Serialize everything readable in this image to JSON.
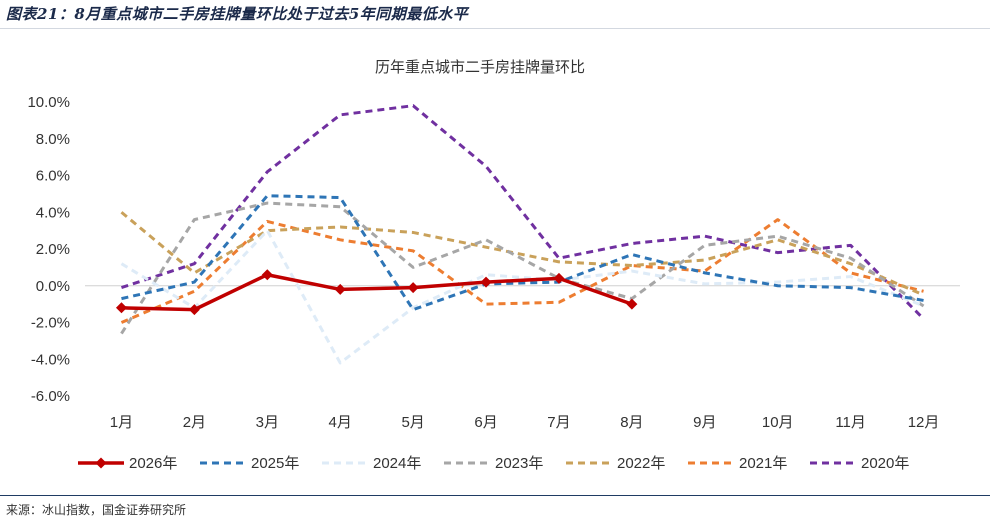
{
  "figure_title": "图表21：8月重点城市二手房挂牌量环比处于过去5年同期最低水平",
  "source_note": "来源：冰山指数，国金证券研究所",
  "chart_data": {
    "type": "line",
    "title": "历年重点城市二手房挂牌量环比",
    "categories": [
      "1月",
      "2月",
      "3月",
      "4月",
      "5月",
      "6月",
      "7月",
      "8月",
      "9月",
      "10月",
      "11月",
      "12月"
    ],
    "ylim": [
      -6,
      10
    ],
    "yticks": [
      -6,
      -4,
      -2,
      0,
      2,
      4,
      6,
      8,
      10
    ],
    "ytick_labels": [
      "-6.0%",
      "-4.0%",
      "-2.0%",
      "0.0%",
      "2.0%",
      "4.0%",
      "6.0%",
      "8.0%",
      "10.0%"
    ],
    "unit": "%",
    "grid": false,
    "legend_position": "bottom",
    "series": [
      {
        "name": "2026年",
        "color": "#c00000",
        "style": "solid-diamond",
        "values": [
          -1.2,
          -1.3,
          0.6,
          -0.2,
          -0.1,
          0.2,
          0.4,
          -1.0,
          null,
          null,
          null,
          null
        ]
      },
      {
        "name": "2025年",
        "color": "#2e75b6",
        "style": "dashed",
        "values": [
          -0.7,
          0.2,
          4.9,
          4.8,
          -1.3,
          0.1,
          0.2,
          1.7,
          0.7,
          0.0,
          -0.1,
          -0.8
        ]
      },
      {
        "name": "2024年",
        "color": "#deebf7",
        "style": "dashed",
        "values": [
          1.2,
          -1.2,
          3.0,
          -4.2,
          -1.2,
          0.6,
          0.3,
          0.8,
          0.1,
          0.2,
          0.5,
          -1.1
        ]
      },
      {
        "name": "2023年",
        "color": "#a6a6a6",
        "style": "dashed",
        "values": [
          -2.6,
          3.6,
          4.5,
          4.3,
          1.0,
          2.5,
          0.4,
          -0.7,
          2.2,
          2.7,
          1.5,
          -1.1
        ]
      },
      {
        "name": "2022年",
        "color": "#c9a15a",
        "style": "dashed",
        "values": [
          4.0,
          0.7,
          3.0,
          3.2,
          2.9,
          2.1,
          1.3,
          1.1,
          1.4,
          2.5,
          1.2,
          -0.5
        ]
      },
      {
        "name": "2021年",
        "color": "#ed7d31",
        "style": "dashed",
        "values": [
          -2.0,
          -0.3,
          3.5,
          2.5,
          1.9,
          -1.0,
          -0.9,
          1.1,
          0.8,
          3.6,
          0.7,
          -0.3
        ]
      },
      {
        "name": "2020年",
        "color": "#7030a0",
        "style": "dashed",
        "values": [
          -0.1,
          1.2,
          6.2,
          9.3,
          9.8,
          6.5,
          1.5,
          2.3,
          2.7,
          1.8,
          2.2,
          -1.8
        ]
      }
    ]
  }
}
